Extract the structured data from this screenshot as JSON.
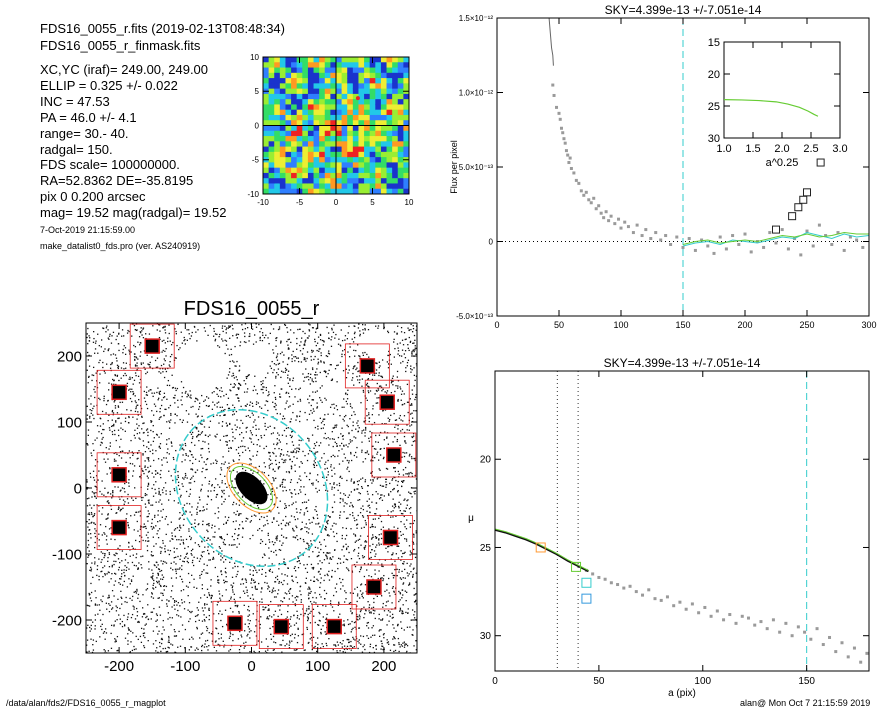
{
  "header": {
    "lines": [
      "FDS16_0055_r.fits  (2019-02-13T08:48:34)",
      "FDS16_0055_r_finmask.fits",
      "XC,YC (iraf)=   249.00, 249.00",
      "ELLIP = 0.325 +/- 0.022",
      "INC   = 47.53",
      "PA    = 46.0 +/-   4.1",
      "range=   30.-   40.",
      "radgal=  150.",
      "FDS scale=  100000000.",
      "RA=52.8362   DE=-35.8195",
      "pix 0 0.200 arcsec",
      "mag=  19.52  mag(radgal)=  19.52"
    ],
    "timestamp": "7-Oct-2019 21:15:59.00",
    "program": "make_datalist0_fds.pro (ver. AS240919)"
  },
  "footer": {
    "path": "/data/alan/fds2/FDS16_0055_r_magplot",
    "user_date": "alan@  Mon Oct  7 21:15:59 2019"
  },
  "colors": {
    "cyan": "#33cccc",
    "green": "#66cc33",
    "orange": "#ff9933",
    "red": "#e02020",
    "gray": "#9a9a9a",
    "black": "#000000"
  },
  "chart_data": [
    {
      "type": "heatmap",
      "name": "centre-map",
      "x_ticks": [
        "-10",
        "-5",
        "0",
        "5",
        "10"
      ],
      "y_ticks": [
        "10",
        "5",
        "0",
        "-5",
        "-10"
      ],
      "xlim": [
        -10,
        10
      ],
      "ylim": [
        -10,
        10
      ],
      "colormap": [
        "#1a33cc",
        "#2f7fff",
        "#22c8e8",
        "#33dd66",
        "#99ee33",
        "#eeee33",
        "#ff9922",
        "#ee2222"
      ]
    },
    {
      "type": "scatter",
      "name": "galaxy-image",
      "title": "FDS16_0055_r",
      "xlim": [
        -250,
        250
      ],
      "ylim": [
        -250,
        250
      ],
      "x_ticks": [
        "-200",
        "-100",
        "0",
        "100",
        "200"
      ],
      "y_ticks": [
        "200",
        "100",
        "0",
        "-100",
        "-200"
      ],
      "ellipse": {
        "major": 150,
        "ellip": 0.325,
        "pa": 46.0
      },
      "mask_boxes": [
        [
          -150,
          215
        ],
        [
          -200,
          145
        ],
        [
          -200,
          20
        ],
        [
          -200,
          -60
        ],
        [
          -25,
          -205
        ],
        [
          45,
          -210
        ],
        [
          125,
          -210
        ],
        [
          175,
          185
        ],
        [
          205,
          130
        ],
        [
          215,
          50
        ],
        [
          210,
          -75
        ],
        [
          185,
          -150
        ]
      ]
    },
    {
      "type": "scatter",
      "name": "sky-profile",
      "title": "SKY=4.399e-13 +/-7.051e-14",
      "xlabel": "",
      "ylabel": "Flux per pixel",
      "xlim": [
        0,
        300
      ],
      "ylim": [
        -5e-13,
        1.5e-12
      ],
      "x_ticks": [
        "0",
        "50",
        "100",
        "150",
        "200",
        "250",
        "300"
      ],
      "y_ticks": [
        "1.5×10⁻¹²",
        "1.0×10⁻¹²",
        "5.0×10⁻¹³",
        "0",
        "-5.0×10⁻¹³"
      ],
      "y_tick_values": [
        1.5e-12,
        1e-12,
        5e-13,
        0,
        -5e-13
      ],
      "radgal_line": 150,
      "profile_line": {
        "x": [
          41,
          42,
          43,
          44,
          45,
          45.5
        ],
        "y": [
          1.55e-12,
          1.5e-12,
          1.4e-12,
          1.3e-12,
          1.25e-12,
          1.18e-12
        ]
      },
      "points": {
        "x": [
          45,
          46,
          48,
          50,
          51,
          52,
          53,
          54,
          55,
          56,
          57,
          58,
          59,
          60,
          62,
          64,
          66,
          68,
          70,
          72,
          74,
          76,
          78,
          80,
          82,
          84,
          86,
          88,
          90,
          92,
          95,
          98,
          100,
          103,
          106,
          110,
          113,
          117,
          120,
          124,
          128,
          132,
          136,
          140,
          145,
          150,
          155,
          160,
          165,
          170,
          175,
          180,
          185,
          190,
          195,
          200,
          205,
          210,
          215,
          220,
          225,
          230,
          235,
          240,
          245,
          250,
          255,
          260,
          265,
          270,
          275,
          280,
          285,
          290,
          295
        ],
        "y": [
          1.05e-12,
          9.8e-13,
          9e-13,
          8.6e-13,
          8.2e-13,
          7.6e-13,
          7.3e-13,
          6.9e-13,
          6.6e-13,
          6.1e-13,
          5.8e-13,
          5.3e-13,
          5.6e-13,
          4.9e-13,
          4.6e-13,
          4.1e-13,
          3.9e-13,
          3.4e-13,
          3.1e-13,
          3.3e-13,
          2.8e-13,
          2.6e-13,
          2.9e-13,
          2.2e-13,
          2.4e-13,
          1.9e-13,
          1.6e-13,
          2e-13,
          1.4e-13,
          1.7e-13,
          1.2e-13,
          1.5e-13,
          9e-14,
          1.3e-13,
          1e-13,
          6e-14,
          1.1e-13,
          4e-14,
          8e-14,
          2e-14,
          6e-14,
          1e-14,
          4e-14,
          -2e-14,
          3e-14,
          -4e-14,
          2e-14,
          -6e-14,
          1e-14,
          -3e-14,
          -8e-14,
          3e-14,
          -5e-14,
          4e-14,
          -2e-14,
          5e-14,
          -7e-14,
          0,
          -4e-14,
          6e-14,
          -1e-14,
          8e-14,
          -5e-14,
          2e-14,
          -9e-14,
          7e-14,
          -3e-14,
          1.1e-13,
          4e-14,
          -2e-14,
          6e-14,
          -6e-14,
          3e-14,
          1e-14,
          -4e-14
        ]
      },
      "squares": {
        "x": [
          225,
          238,
          243,
          247,
          250,
          261
        ],
        "y": [
          8e-14,
          1.7e-13,
          2.3e-13,
          2.8e-13,
          3.3e-13,
          5.3e-13
        ]
      },
      "cyan_model": {
        "x": [
          150,
          160,
          170,
          180,
          190,
          200,
          210,
          220,
          230,
          240,
          250,
          260,
          270,
          280,
          290,
          300
        ],
        "y": [
          -3e-14,
          -1e-14,
          0,
          -2e-14,
          1e-14,
          0,
          -1e-14,
          1e-14,
          3e-14,
          2e-14,
          6e-14,
          4e-14,
          2e-14,
          5e-14,
          3e-14,
          4e-14
        ]
      },
      "green_model": {
        "x": [
          150,
          160,
          170,
          180,
          190,
          200,
          210,
          220,
          230,
          240,
          250,
          260,
          270,
          280,
          290,
          300
        ],
        "y": [
          -2e-14,
          0,
          1e-14,
          -1e-14,
          0,
          1e-14,
          0,
          2e-14,
          4e-14,
          3e-14,
          5e-14,
          3e-14,
          4e-14,
          6e-14,
          5e-14,
          5e-14
        ]
      },
      "inset": {
        "xlabel": "a^0.25",
        "xlim": [
          1.0,
          3.0
        ],
        "ylim": [
          30,
          15
        ],
        "x_ticks": [
          "1.0",
          "1.5",
          "2.0",
          "2.5",
          "3.0"
        ],
        "y_ticks": [
          "15",
          "20",
          "25",
          "30"
        ],
        "curve": {
          "x": [
            1.0,
            1.3,
            1.6,
            1.9,
            2.1,
            2.3,
            2.45,
            2.55,
            2.62
          ],
          "y": [
            24.0,
            24.05,
            24.15,
            24.35,
            24.7,
            25.2,
            25.8,
            26.3,
            26.6
          ]
        }
      }
    },
    {
      "type": "scatter",
      "name": "surface-brightness-profile",
      "title": "SKY=4.399e-13 +/-7.051e-14",
      "xlabel": "a (pix)",
      "ylabel": "μ",
      "xlim": [
        0,
        180
      ],
      "ylim": [
        32,
        15
      ],
      "x_ticks": [
        "0",
        "50",
        "100",
        "150"
      ],
      "y_ticks": [
        "20",
        "25",
        "30"
      ],
      "range_lines": [
        30,
        40
      ],
      "radgal_line": 150,
      "profile_curve": {
        "x": [
          0,
          5,
          10,
          15,
          20,
          25,
          30,
          35,
          40,
          45
        ],
        "y": [
          24.0,
          24.15,
          24.35,
          24.55,
          24.8,
          25.1,
          25.4,
          25.75,
          26.05,
          26.35
        ]
      },
      "points": {
        "x": [
          44,
          47,
          50,
          53,
          56,
          59,
          62,
          65,
          68,
          71,
          74,
          77,
          80,
          83,
          86,
          89,
          92,
          95,
          98,
          101,
          104,
          107,
          110,
          113,
          116,
          119,
          122,
          125,
          128,
          131,
          134,
          137,
          140,
          143,
          146,
          149,
          152,
          155,
          158,
          161,
          164,
          167,
          170,
          173,
          176,
          179
        ],
        "y": [
          26.3,
          26.5,
          26.7,
          26.8,
          27.0,
          27.1,
          27.3,
          27.2,
          27.5,
          27.7,
          27.4,
          27.9,
          28.0,
          27.8,
          28.3,
          28.1,
          28.5,
          28.2,
          28.7,
          28.4,
          28.9,
          28.6,
          29.1,
          28.8,
          29.3,
          28.9,
          29.0,
          29.4,
          29.2,
          29.6,
          29.1,
          29.8,
          29.3,
          30.0,
          29.5,
          29.8,
          30.2,
          29.6,
          30.5,
          30.1,
          30.9,
          30.4,
          31.2,
          30.7,
          31.5,
          31.0
        ]
      },
      "squares": {
        "orange": [
          [
            22,
            25.0
          ]
        ],
        "green": [
          [
            39,
            26.1
          ]
        ],
        "cyan": [
          [
            44,
            27.0
          ]
        ],
        "blue": [
          [
            44,
            27.9
          ]
        ]
      }
    }
  ]
}
